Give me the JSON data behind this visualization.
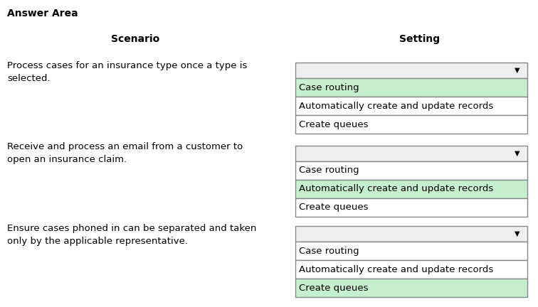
{
  "title": "Answer Area",
  "col_scenario": "Scenario",
  "col_setting": "Setting",
  "bg_color": "#ffffff",
  "title_fontsize": 10,
  "header_fontsize": 10,
  "text_fontsize": 9.5,
  "option_fontsize": 9.5,
  "rows": [
    {
      "scenario": "Process cases for an insurance type once a type is\nselected.",
      "options": [
        "Case routing",
        "Automatically create and update records",
        "Create queues"
      ],
      "selected_index": 0
    },
    {
      "scenario": "Receive and process an email from a customer to\nopen an insurance claim.",
      "options": [
        "Case routing",
        "Automatically create and update records",
        "Create queues"
      ],
      "selected_index": 1
    },
    {
      "scenario": "Ensure cases phoned in can be separated and taken\nonly by the applicable representative.",
      "options": [
        "Case routing",
        "Automatically create and update records",
        "Create queues"
      ],
      "selected_index": 2
    }
  ],
  "dropdown_header_bg": "#eeeeee",
  "dropdown_border": "#888888",
  "selected_bg": "#c6efce",
  "unselected_bg": "#ffffff",
  "text_color": "#000000",
  "fig_width": 7.56,
  "fig_height": 4.32,
  "dpi": 100
}
